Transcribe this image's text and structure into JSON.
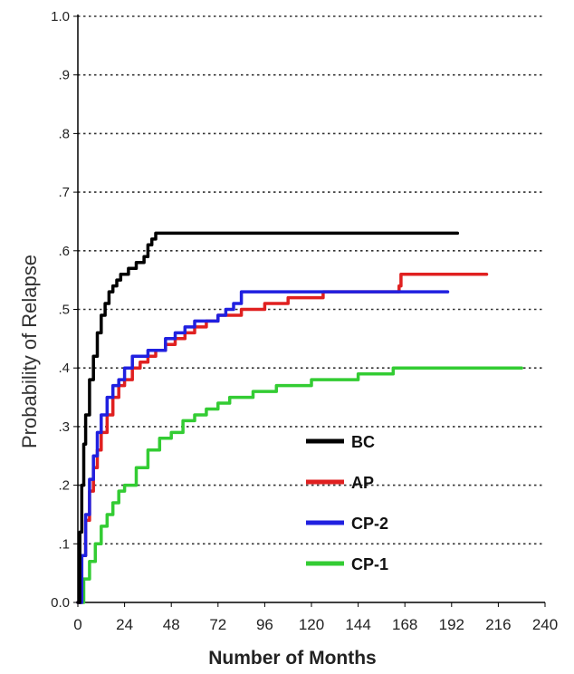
{
  "chart_data": {
    "type": "line",
    "xlabel": "Number of Months",
    "ylabel": "Probability of Relapse",
    "xlim": [
      0,
      240
    ],
    "ylim": [
      0,
      1.0
    ],
    "x_ticks": [
      0,
      24,
      48,
      72,
      96,
      120,
      144,
      168,
      192,
      216,
      240
    ],
    "x_tick_labels": [
      "0",
      "24",
      "48",
      "72",
      "96",
      "120",
      "144",
      "168",
      "192",
      "216",
      "240"
    ],
    "y_ticks": [
      0,
      0.1,
      0.2,
      0.3,
      0.4,
      0.5,
      0.6,
      0.7,
      0.8,
      0.9,
      1.0
    ],
    "y_tick_labels": [
      "0.0",
      ".1",
      ".2",
      ".3",
      ".4",
      ".5",
      ".6",
      ".7",
      ".8",
      ".9",
      "1.0"
    ],
    "grid": "horizontal dotted",
    "legend_position": "lower-right",
    "series": [
      {
        "name": "BC",
        "color": "#000000",
        "x": [
          0,
          1,
          2,
          3,
          4,
          6,
          8,
          10,
          12,
          14,
          16,
          18,
          20,
          22,
          24,
          26,
          28,
          30,
          32,
          34,
          36,
          38,
          40,
          60,
          90,
          120,
          150,
          180,
          195
        ],
        "y": [
          0.0,
          0.12,
          0.2,
          0.27,
          0.32,
          0.38,
          0.42,
          0.46,
          0.49,
          0.51,
          0.53,
          0.54,
          0.55,
          0.56,
          0.56,
          0.57,
          0.57,
          0.58,
          0.58,
          0.59,
          0.61,
          0.62,
          0.63,
          0.63,
          0.63,
          0.63,
          0.63,
          0.63,
          0.63
        ]
      },
      {
        "name": "AP",
        "color": "#e02020",
        "x": [
          0,
          2,
          4,
          6,
          8,
          10,
          12,
          15,
          18,
          21,
          24,
          28,
          32,
          36,
          40,
          45,
          50,
          55,
          60,
          66,
          72,
          78,
          84,
          90,
          96,
          102,
          108,
          114,
          120,
          126,
          132,
          138,
          144,
          150,
          156,
          162,
          165,
          166,
          190,
          210
        ],
        "y": [
          0.0,
          0.08,
          0.14,
          0.19,
          0.23,
          0.26,
          0.29,
          0.32,
          0.35,
          0.37,
          0.38,
          0.4,
          0.41,
          0.42,
          0.43,
          0.44,
          0.45,
          0.46,
          0.47,
          0.48,
          0.49,
          0.49,
          0.5,
          0.5,
          0.51,
          0.51,
          0.52,
          0.52,
          0.52,
          0.53,
          0.53,
          0.53,
          0.53,
          0.53,
          0.53,
          0.53,
          0.54,
          0.56,
          0.56,
          0.56
        ]
      },
      {
        "name": "CP-2",
        "color": "#2020e0",
        "x": [
          0,
          2,
          4,
          6,
          8,
          10,
          12,
          15,
          18,
          21,
          24,
          28,
          32,
          36,
          40,
          45,
          50,
          55,
          60,
          66,
          72,
          76,
          80,
          84,
          90,
          100,
          120,
          140,
          160,
          180,
          190
        ],
        "y": [
          0.0,
          0.08,
          0.15,
          0.21,
          0.25,
          0.29,
          0.32,
          0.35,
          0.37,
          0.38,
          0.4,
          0.42,
          0.42,
          0.43,
          0.43,
          0.45,
          0.46,
          0.47,
          0.48,
          0.48,
          0.49,
          0.5,
          0.51,
          0.53,
          0.53,
          0.53,
          0.53,
          0.53,
          0.53,
          0.53,
          0.53
        ]
      },
      {
        "name": "CP-1",
        "color": "#33cc33",
        "x": [
          0,
          3,
          6,
          9,
          12,
          15,
          18,
          21,
          24,
          30,
          36,
          42,
          48,
          54,
          60,
          66,
          72,
          78,
          84,
          90,
          96,
          102,
          108,
          114,
          120,
          126,
          132,
          138,
          144,
          150,
          156,
          160,
          162,
          180,
          200,
          220,
          228
        ],
        "y": [
          0.0,
          0.04,
          0.07,
          0.1,
          0.13,
          0.15,
          0.17,
          0.19,
          0.2,
          0.23,
          0.26,
          0.28,
          0.29,
          0.31,
          0.32,
          0.33,
          0.34,
          0.35,
          0.35,
          0.36,
          0.36,
          0.37,
          0.37,
          0.37,
          0.38,
          0.38,
          0.38,
          0.38,
          0.39,
          0.39,
          0.39,
          0.39,
          0.4,
          0.4,
          0.4,
          0.4,
          0.4
        ]
      }
    ]
  }
}
